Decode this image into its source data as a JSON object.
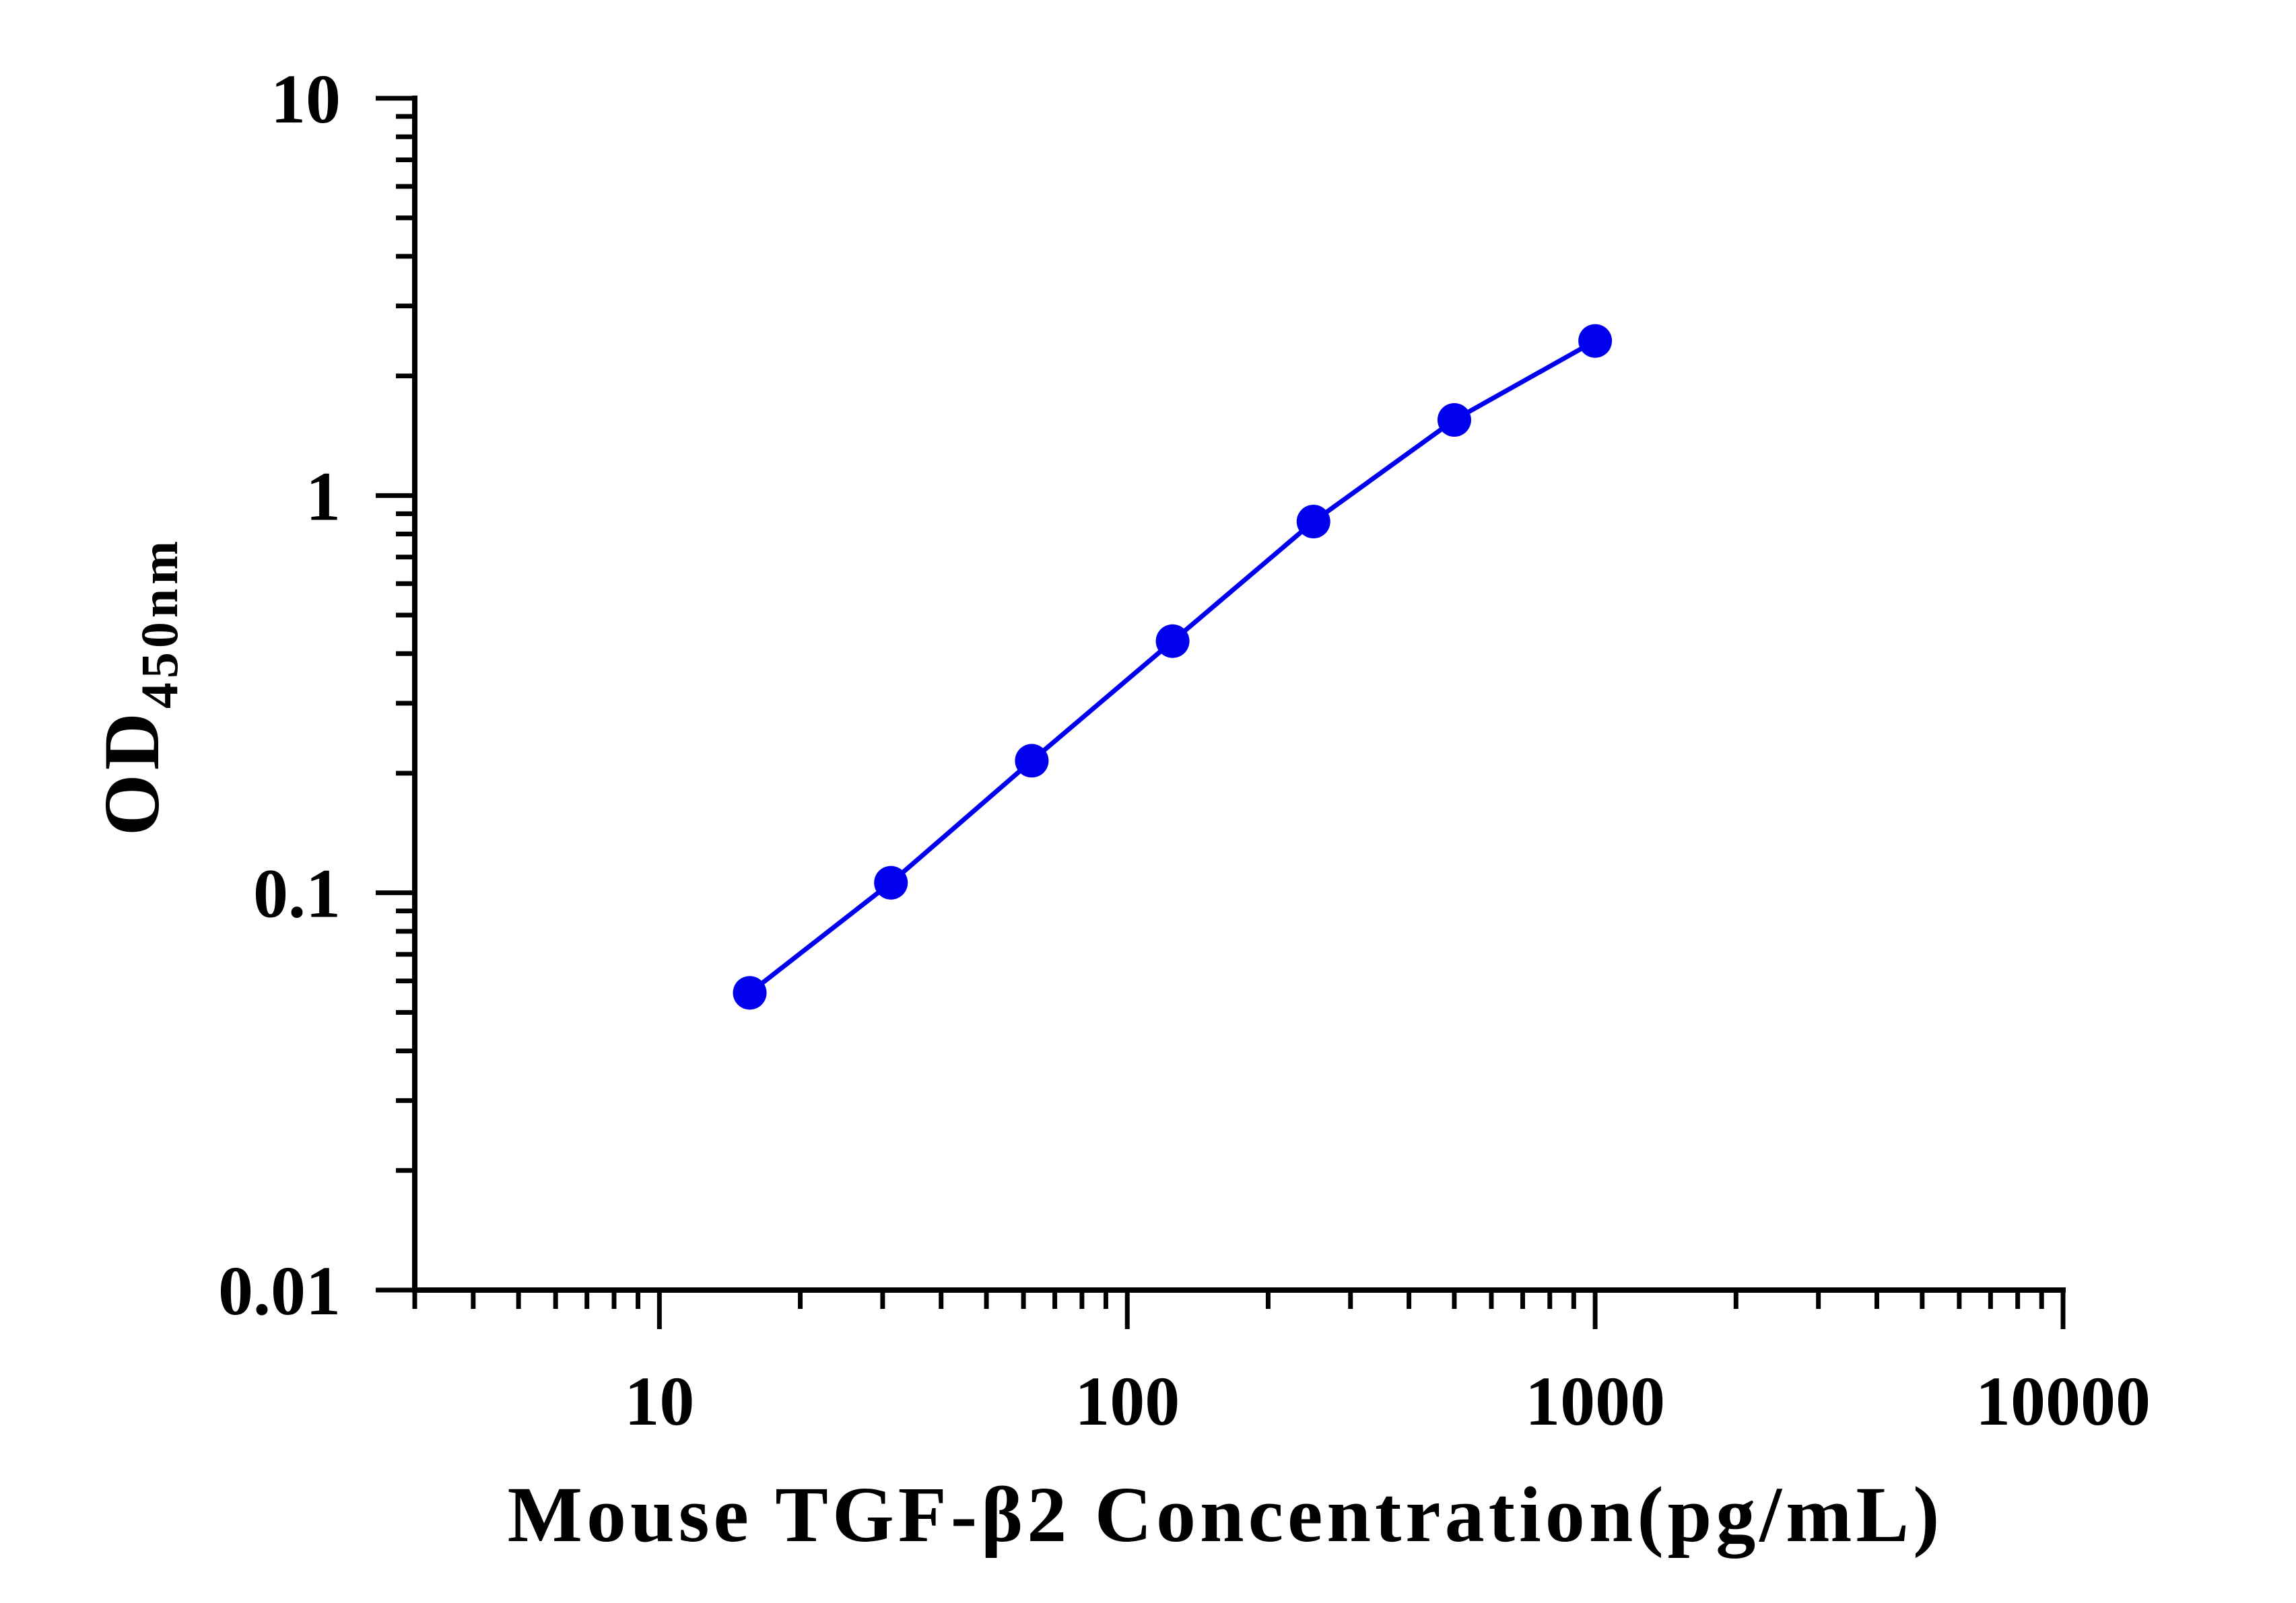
{
  "chart_data": {
    "type": "line",
    "xlabel": "Mouse TGF-β2 Concentration(pg/mL)",
    "ylabel_main": "OD",
    "ylabel_sub": "450nm",
    "xscale": "log",
    "yscale": "log",
    "xlim": [
      3,
      10000
    ],
    "ylim": [
      0.01,
      10
    ],
    "xticks": [
      "10",
      "100",
      "1000",
      "10000"
    ],
    "xtick_values": [
      10,
      100,
      1000,
      10000
    ],
    "yticks": [
      "10",
      "1",
      "0.1",
      "0.01"
    ],
    "ytick_values": [
      10,
      1,
      0.1,
      0.01
    ],
    "grid": false,
    "series": [
      {
        "color": "#0000ee",
        "marker": "circle",
        "x": [
          15.6,
          31.25,
          62.5,
          125,
          250,
          500,
          1000
        ],
        "y": [
          0.056,
          0.106,
          0.215,
          0.43,
          0.86,
          1.55,
          2.45
        ]
      }
    ]
  }
}
